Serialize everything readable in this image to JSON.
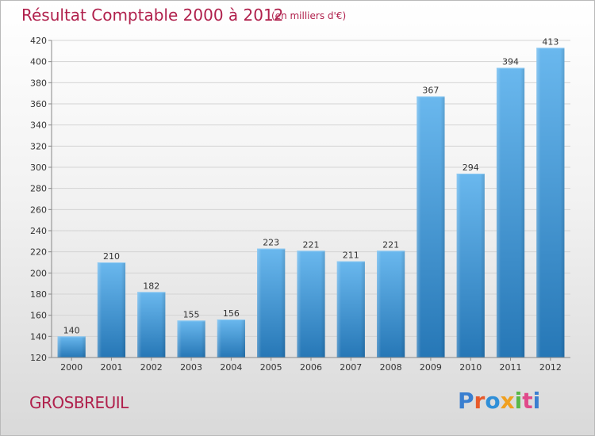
{
  "header": {
    "title": "Résultat Comptable 2000 à 2012",
    "subtitle": "(en milliers d'€)"
  },
  "footer": {
    "commune": "GROSBREUIL",
    "logo_letters": [
      {
        "ch": "P",
        "color": "#3a7fd0"
      },
      {
        "ch": "r",
        "color": "#e85a2a"
      },
      {
        "ch": "o",
        "color": "#2f8fd8"
      },
      {
        "ch": "x",
        "color": "#f0a020"
      },
      {
        "ch": "i",
        "color": "#58b848"
      },
      {
        "ch": "t",
        "color": "#e04a8a"
      },
      {
        "ch": "i",
        "color": "#3a7fd0"
      }
    ]
  },
  "colors": {
    "title": "#b0204c",
    "bar_light": "#62b2ea",
    "bar_dark": "#2a7ab8",
    "grid": "#d3d3d3",
    "axis_text": "#333333"
  },
  "chart_data": {
    "type": "bar",
    "categories": [
      "2000",
      "2001",
      "2002",
      "2003",
      "2004",
      "2005",
      "2006",
      "2007",
      "2008",
      "2009",
      "2010",
      "2011",
      "2012"
    ],
    "values": [
      140,
      210,
      182,
      155,
      156,
      223,
      221,
      211,
      221,
      367,
      294,
      394,
      413
    ],
    "title": "Résultat Comptable 2000 à 2012",
    "subtitle": "(en milliers d'€)",
    "xlabel": "",
    "ylabel": "",
    "ylim": [
      120,
      420
    ],
    "yticks": [
      120,
      140,
      160,
      180,
      200,
      220,
      240,
      260,
      280,
      300,
      320,
      340,
      360,
      380,
      400,
      420
    ],
    "grid": true,
    "data_labels": true
  }
}
